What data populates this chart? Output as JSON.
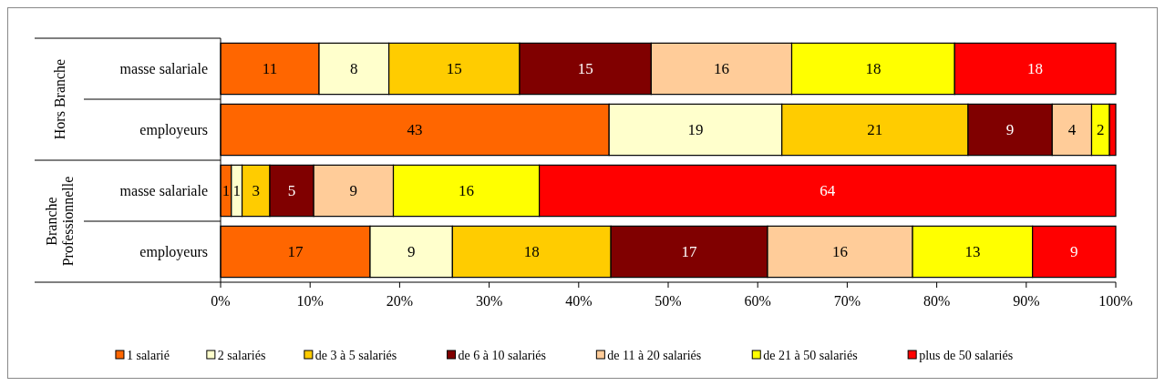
{
  "chart_data": {
    "type": "bar",
    "orientation": "horizontal",
    "stacked": true,
    "categories": [
      "masse salariale",
      "employeurs",
      "masse salariale",
      "employeurs"
    ],
    "series": [
      {
        "name": "1 salarié",
        "color": "#ff6600",
        "values": [
          11.0,
          43.4,
          1.2,
          16.7
        ],
        "value_labels": [
          "11",
          "43",
          "1",
          "17"
        ]
      },
      {
        "name": "2 salariés",
        "color": "#ffffcc",
        "values": [
          7.8,
          19.3,
          1.2,
          9.2
        ],
        "value_labels": [
          "8",
          "19",
          "1",
          "9"
        ]
      },
      {
        "name": "de 3 à 5 salariés",
        "color": "#ffcc00",
        "values": [
          14.6,
          20.8,
          3.1,
          17.7
        ],
        "value_labels": [
          "15",
          "21",
          "3",
          "18"
        ]
      },
      {
        "name": "de 6 à 10 salariés",
        "color": "#800000",
        "values": [
          14.7,
          9.4,
          4.9,
          17.5
        ],
        "value_labels": [
          "15",
          "9",
          "5",
          "17"
        ]
      },
      {
        "name": "de 11 à 20 salariés",
        "color": "#ffcc99",
        "values": [
          15.7,
          4.4,
          8.9,
          16.2
        ],
        "value_labels": [
          "16",
          "4",
          "9",
          "16"
        ]
      },
      {
        "name": "de 21 à 50 salariés",
        "color": "#ffff00",
        "values": [
          18.2,
          2.0,
          16.3,
          13.4
        ],
        "value_labels": [
          "18",
          "2",
          "16",
          "13"
        ]
      },
      {
        "name": "plus de 50 salariés",
        "color": "#ff0000",
        "values": [
          18.0,
          0.7,
          64.4,
          9.3
        ],
        "value_labels": [
          "18",
          null,
          "64",
          "9"
        ]
      }
    ],
    "annotations": [
      "Hors Branche",
      "Branche Professionnelle"
    ],
    "xlim": [
      0,
      100
    ],
    "xticks": [
      {
        "value": 0,
        "label": "0%"
      },
      {
        "value": 10,
        "label": "10%"
      },
      {
        "value": 20,
        "label": "20%"
      },
      {
        "value": 30,
        "label": "30%"
      },
      {
        "value": 40,
        "label": "40%"
      },
      {
        "value": 50,
        "label": "50%"
      },
      {
        "value": 60,
        "label": "60%"
      },
      {
        "value": 70,
        "label": "70%"
      },
      {
        "value": 80,
        "label": "80%"
      },
      {
        "value": 90,
        "label": "90%"
      },
      {
        "value": 100,
        "label": "100%"
      }
    ],
    "legend": "bottom"
  }
}
